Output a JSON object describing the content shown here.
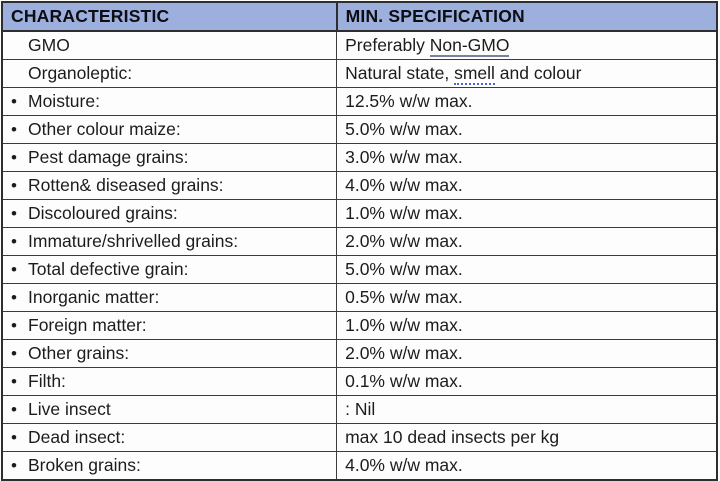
{
  "colors": {
    "header_bg": "#9cafdd",
    "border": "#3c3c3c",
    "text": "#1c1c1c",
    "smell_underline": "#4a66cc"
  },
  "table": {
    "columns": {
      "characteristic": "CHARACTERISTIC",
      "specification": "MIN. SPECIFICATION"
    },
    "rows": [
      {
        "bullet": "",
        "characteristic": "GMO",
        "specification": "Preferably Non-GMO",
        "spec_prefix": "Preferably ",
        "spec_underlined": "Non-GMO"
      },
      {
        "bullet": "",
        "characteristic": "Organoleptic:",
        "specification": "Natural state, smell and colour",
        "spec_prefix": "Natural state, ",
        "spec_underlined": "smell",
        "spec_suffix": " and colour"
      },
      {
        "bullet": "•",
        "characteristic": "Moisture:",
        "specification": "12.5% w/w max."
      },
      {
        "bullet": "•",
        "characteristic": "Other colour maize:",
        "specification": "5.0% w/w max."
      },
      {
        "bullet": "•",
        "characteristic": "Pest damage grains:",
        "specification": "3.0% w/w max."
      },
      {
        "bullet": "•",
        "characteristic": "Rotten& diseased grains:",
        "specification": "4.0% w/w max."
      },
      {
        "bullet": "•",
        "characteristic": "Discoloured grains:",
        "specification": "1.0% w/w max."
      },
      {
        "bullet": "•",
        "characteristic": "Immature/shrivelled grains:",
        "specification": "2.0% w/w max."
      },
      {
        "bullet": "•",
        "characteristic": "Total defective grain:",
        "specification": "5.0% w/w max."
      },
      {
        "bullet": "•",
        "characteristic": "Inorganic matter:",
        "specification": "0.5% w/w max."
      },
      {
        "bullet": "•",
        "characteristic": "Foreign matter:",
        "specification": "1.0% w/w max."
      },
      {
        "bullet": "•",
        "characteristic": "Other grains:",
        "specification": "2.0% w/w max."
      },
      {
        "bullet": "•",
        "characteristic": "Filth:",
        "specification": "0.1% w/w max."
      },
      {
        "bullet": "•",
        "characteristic": "Live insect",
        "specification": ": Nil"
      },
      {
        "bullet": "•",
        "characteristic": "Dead insect:",
        "specification": "max 10 dead insects per kg"
      },
      {
        "bullet": "•",
        "characteristic": "Broken grains:",
        "specification": "4.0% w/w max."
      }
    ]
  }
}
